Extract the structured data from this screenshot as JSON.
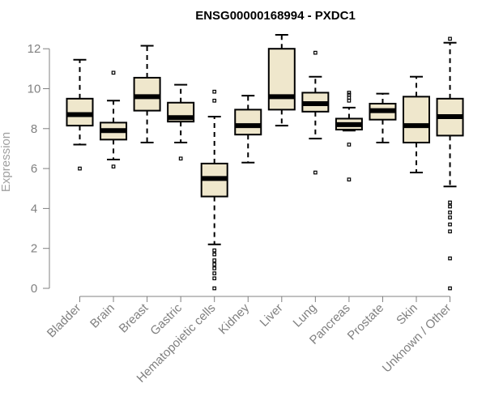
{
  "chart_data": {
    "type": "boxplot",
    "title": "ENSG00000168994 - PXDC1",
    "xlabel": "",
    "ylabel": "Expression",
    "ylim": [
      0,
      12.5
    ],
    "yticks": [
      0,
      2,
      4,
      6,
      8,
      10,
      12
    ],
    "grid": false,
    "legend": "none",
    "colors": {
      "box_fill": "#efe7cc",
      "box_stroke": "#000000",
      "median": "#000000",
      "axis": "#808080",
      "tick_text": "#808080"
    },
    "categories": [
      "Bladder",
      "Brain",
      "Breast",
      "Gastric",
      "Hematopoietic cells",
      "Kidney",
      "Liver",
      "Lung",
      "Pancreas",
      "Prostate",
      "Skin",
      "Unknown / Other"
    ],
    "boxes": [
      {
        "category": "Bladder",
        "whisker_low": 7.2,
        "q1": 8.15,
        "median": 8.7,
        "q3": 9.5,
        "whisker_high": 11.45,
        "outliers": [
          6.0
        ]
      },
      {
        "category": "Brain",
        "whisker_low": 6.45,
        "q1": 7.45,
        "median": 7.9,
        "q3": 8.3,
        "whisker_high": 9.4,
        "outliers": [
          10.8,
          6.1
        ]
      },
      {
        "category": "Breast",
        "whisker_low": 7.3,
        "q1": 8.9,
        "median": 9.6,
        "q3": 10.55,
        "whisker_high": 12.15,
        "outliers": []
      },
      {
        "category": "Gastric",
        "whisker_low": 7.3,
        "q1": 8.35,
        "median": 8.55,
        "q3": 9.3,
        "whisker_high": 10.2,
        "outliers": [
          6.5
        ]
      },
      {
        "category": "Hematopoietic cells",
        "whisker_low": 2.2,
        "q1": 4.6,
        "median": 5.5,
        "q3": 6.25,
        "whisker_high": 8.6,
        "outliers": [
          9.85,
          9.4,
          1.9,
          1.7,
          1.4,
          1.2,
          1.0,
          0.75,
          0.5,
          0.0
        ]
      },
      {
        "category": "Kidney",
        "whisker_low": 6.3,
        "q1": 7.7,
        "median": 8.15,
        "q3": 8.95,
        "whisker_high": 9.65,
        "outliers": []
      },
      {
        "category": "Liver",
        "whisker_low": 8.15,
        "q1": 8.95,
        "median": 9.6,
        "q3": 12.0,
        "whisker_high": 12.7,
        "outliers": []
      },
      {
        "category": "Lung",
        "whisker_low": 7.5,
        "q1": 8.85,
        "median": 9.25,
        "q3": 9.8,
        "whisker_high": 10.6,
        "outliers": [
          11.8,
          5.8
        ]
      },
      {
        "category": "Pancreas",
        "whisker_low": 7.9,
        "q1": 7.95,
        "median": 8.2,
        "q3": 8.5,
        "whisker_high": 9.05,
        "outliers": [
          9.8,
          9.7,
          9.55,
          9.4,
          7.2,
          5.45
        ]
      },
      {
        "category": "Prostate",
        "whisker_low": 7.3,
        "q1": 8.45,
        "median": 8.9,
        "q3": 9.25,
        "whisker_high": 9.75,
        "outliers": []
      },
      {
        "category": "Skin",
        "whisker_low": 5.8,
        "q1": 7.3,
        "median": 8.15,
        "q3": 9.6,
        "whisker_high": 10.6,
        "outliers": []
      },
      {
        "category": "Unknown / Other",
        "whisker_low": 5.1,
        "q1": 7.65,
        "median": 8.6,
        "q3": 9.5,
        "whisker_high": 12.3,
        "outliers": [
          12.5,
          4.3,
          4.1,
          3.8,
          3.55,
          3.2,
          2.85,
          1.5,
          0.0
        ]
      }
    ]
  }
}
